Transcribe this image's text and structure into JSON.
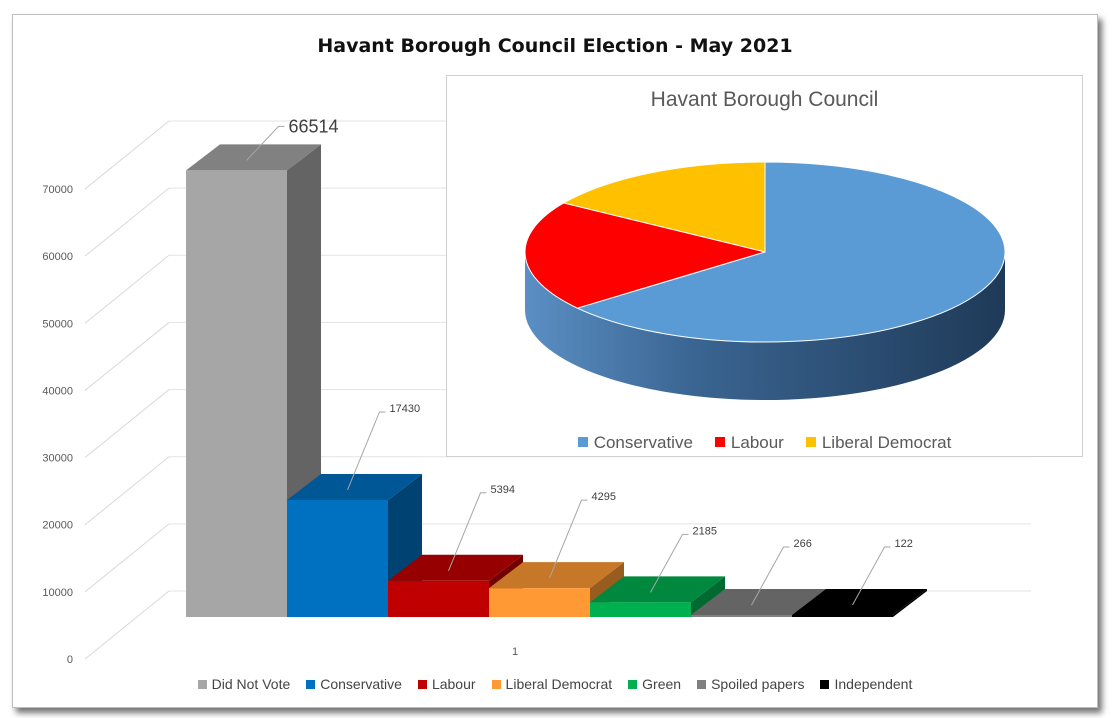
{
  "chart_data": [
    {
      "type": "bar",
      "title": "Havant Borough Council Election - May 2021",
      "categories": [
        "1"
      ],
      "series": [
        {
          "name": "Did Not Vote",
          "values": [
            66514
          ],
          "color": "#a6a6a6",
          "label": "66514"
        },
        {
          "name": "Conservative",
          "values": [
            17430
          ],
          "color": "#0070c0",
          "label": "17430"
        },
        {
          "name": "Labour",
          "values": [
            5394
          ],
          "color": "#c00000",
          "label": "5394"
        },
        {
          "name": "Liberal Democrat",
          "values": [
            4295
          ],
          "color": "#ff9933",
          "label": "4295"
        },
        {
          "name": "Green",
          "values": [
            2185
          ],
          "color": "#00b050",
          "label": "2185"
        },
        {
          "name": "Spoiled papers",
          "values": [
            266
          ],
          "color": "#808080",
          "label": "266"
        },
        {
          "name": "Independent",
          "values": [
            122
          ],
          "color": "#000000",
          "label": "122"
        }
      ],
      "yticks": [
        "0",
        "10000",
        "20000",
        "30000",
        "40000",
        "50000",
        "60000",
        "70000"
      ],
      "ylim": [
        0,
        70000
      ],
      "grid": true,
      "legend_position": "bottom",
      "style": "3d-column"
    },
    {
      "type": "pie",
      "title": "Havant Borough Council",
      "labels": [
        "Conservative",
        "Labour",
        "Liberal Democrat"
      ],
      "values": [
        17430,
        5394,
        4295
      ],
      "colors": [
        "#5b9bd5",
        "#ff0000",
        "#ffc000"
      ],
      "legend_position": "bottom",
      "style": "3d-pie"
    }
  ]
}
